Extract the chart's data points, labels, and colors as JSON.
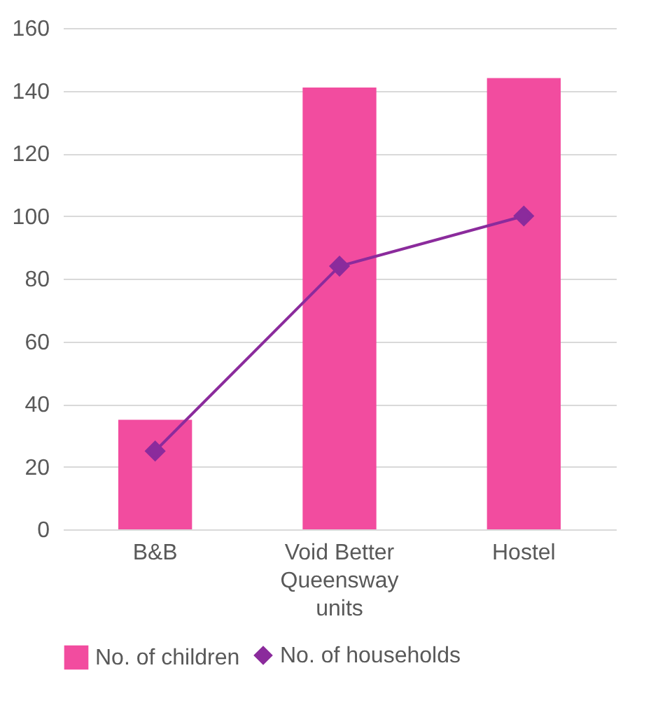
{
  "chart_data": {
    "type": "bar",
    "categories": [
      "B&B",
      "Void Better Queensway units",
      "Hostel"
    ],
    "series": [
      {
        "name": "No. of children",
        "color": "#f24c9f",
        "values": [
          35,
          141,
          144
        ]
      },
      {
        "name": "No. of households",
        "type": "line",
        "color": "#8b2b9c",
        "marker": "diamond",
        "values": [
          25,
          84,
          100
        ]
      }
    ],
    "ylim": [
      0,
      160
    ],
    "yticks": [
      0,
      20,
      40,
      60,
      80,
      100,
      120,
      140,
      160
    ],
    "grid": "y",
    "legend": "bottom"
  }
}
